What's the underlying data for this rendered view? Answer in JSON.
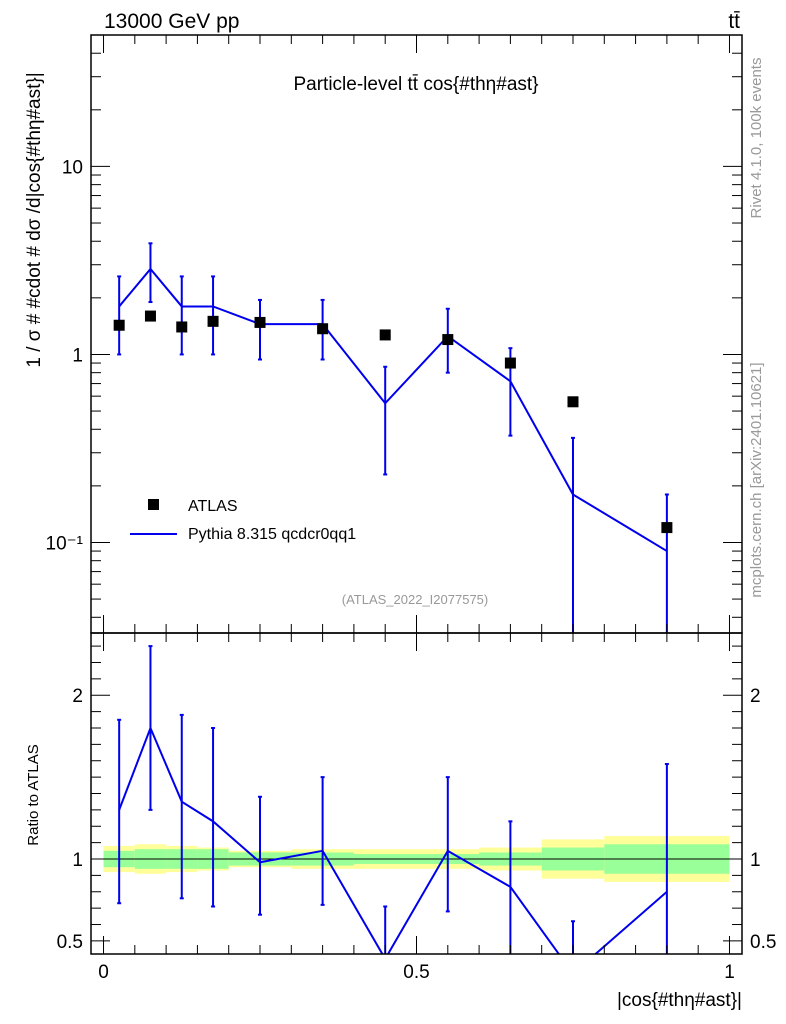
{
  "header": {
    "energy": "13000 GeV pp",
    "process": "tt̄"
  },
  "side_text": {
    "rivet": "Rivet 4.1.0,  100k events",
    "mcplots": "mcplots.cern.ch [arXiv:2401.10621]"
  },
  "colors": {
    "mc": "#0000ee",
    "data": "#000000",
    "band_inner": "#99ff99",
    "band_outer": "#ffff99"
  },
  "chart_data": [
    {
      "type": "scatter",
      "title": "Particle-level tt̄ cos{#thη#ast}",
      "ylabel": "1 / σ # #cdot # dσ /d|cos{#thη#ast}|",
      "xlabel": "",
      "yscale": "log",
      "ylim": [
        0.033,
        50
      ],
      "xlim": [
        -0.02,
        1.02
      ],
      "y_ticks": [
        0.1,
        1,
        10
      ],
      "y_tick_labels": [
        "10⁻¹",
        "1",
        "10"
      ],
      "watermark": "(ATLAS_2022_I2077575)",
      "legend": {
        "position": "bottom-left",
        "entries": [
          "ATLAS",
          "Pythia 8.315 qcdcr0qq1"
        ]
      },
      "series": [
        {
          "name": "ATLAS",
          "x": [
            0.025,
            0.075,
            0.125,
            0.175,
            0.25,
            0.35,
            0.45,
            0.55,
            0.65,
            0.75,
            0.9
          ],
          "y": [
            1.43,
            1.6,
            1.4,
            1.5,
            1.48,
            1.37,
            1.27,
            1.2,
            0.9,
            0.56,
            0.12
          ]
        },
        {
          "name": "Pythia 8.315 qcdcr0qq1",
          "x": [
            0.025,
            0.075,
            0.125,
            0.175,
            0.25,
            0.35,
            0.45,
            0.55,
            0.65,
            0.75,
            0.9
          ],
          "y": [
            1.8,
            2.85,
            1.8,
            1.8,
            1.45,
            1.45,
            0.55,
            1.25,
            0.72,
            0.18,
            0.09
          ],
          "err_low": [
            1.0,
            1.9,
            1.0,
            1.0,
            0.94,
            0.94,
            0.23,
            0.8,
            0.37,
            0.001,
            0.001
          ],
          "err_high": [
            2.6,
            3.9,
            2.6,
            2.6,
            1.95,
            1.95,
            0.86,
            1.75,
            1.08,
            0.36,
            0.18
          ]
        }
      ]
    },
    {
      "type": "line",
      "title": "",
      "xlabel": "|cos{#thη#ast}|",
      "ylabel": "Ratio to ATLAS",
      "ylim": [
        0.42,
        2.38
      ],
      "xlim": [
        -0.02,
        1.02
      ],
      "y_ticks": [
        0.5,
        1,
        2
      ],
      "y_tick_labels": [
        "0.5",
        "1",
        "2"
      ],
      "x_ticks": [
        0,
        0.5,
        1
      ],
      "x_tick_labels": [
        "0",
        "0.5",
        "1"
      ],
      "series": [
        {
          "name": "Pythia 8.315 qcdcr0qq1",
          "x": [
            0.025,
            0.075,
            0.125,
            0.175,
            0.25,
            0.35,
            0.45,
            0.55,
            0.65,
            0.75,
            0.9
          ],
          "y": [
            1.3,
            1.8,
            1.35,
            1.23,
            0.98,
            1.05,
            0.39,
            1.05,
            0.83,
            0.3,
            0.8
          ],
          "err_low": [
            0.73,
            1.3,
            0.76,
            0.71,
            0.66,
            0.72,
            0.18,
            0.68,
            0.4,
            0.001,
            0.001
          ],
          "err_high": [
            1.85,
            2.3,
            1.88,
            1.8,
            1.38,
            1.5,
            0.71,
            1.5,
            1.23,
            0.62,
            1.58
          ]
        }
      ],
      "band": {
        "bin_edges": [
          0,
          0.05,
          0.1,
          0.15,
          0.2,
          0.3,
          0.4,
          0.5,
          0.6,
          0.7,
          0.8,
          1.0
        ],
        "inner_low": [
          0.95,
          0.94,
          0.94,
          0.94,
          0.96,
          0.96,
          0.97,
          0.97,
          0.96,
          0.93,
          0.91
        ],
        "inner_high": [
          1.05,
          1.06,
          1.06,
          1.06,
          1.04,
          1.04,
          1.03,
          1.03,
          1.04,
          1.07,
          1.09
        ],
        "outer_low": [
          0.92,
          0.91,
          0.92,
          0.93,
          0.95,
          0.94,
          0.94,
          0.94,
          0.93,
          0.88,
          0.86
        ],
        "outer_high": [
          1.08,
          1.09,
          1.08,
          1.07,
          1.05,
          1.06,
          1.06,
          1.06,
          1.07,
          1.12,
          1.14
        ]
      }
    }
  ]
}
